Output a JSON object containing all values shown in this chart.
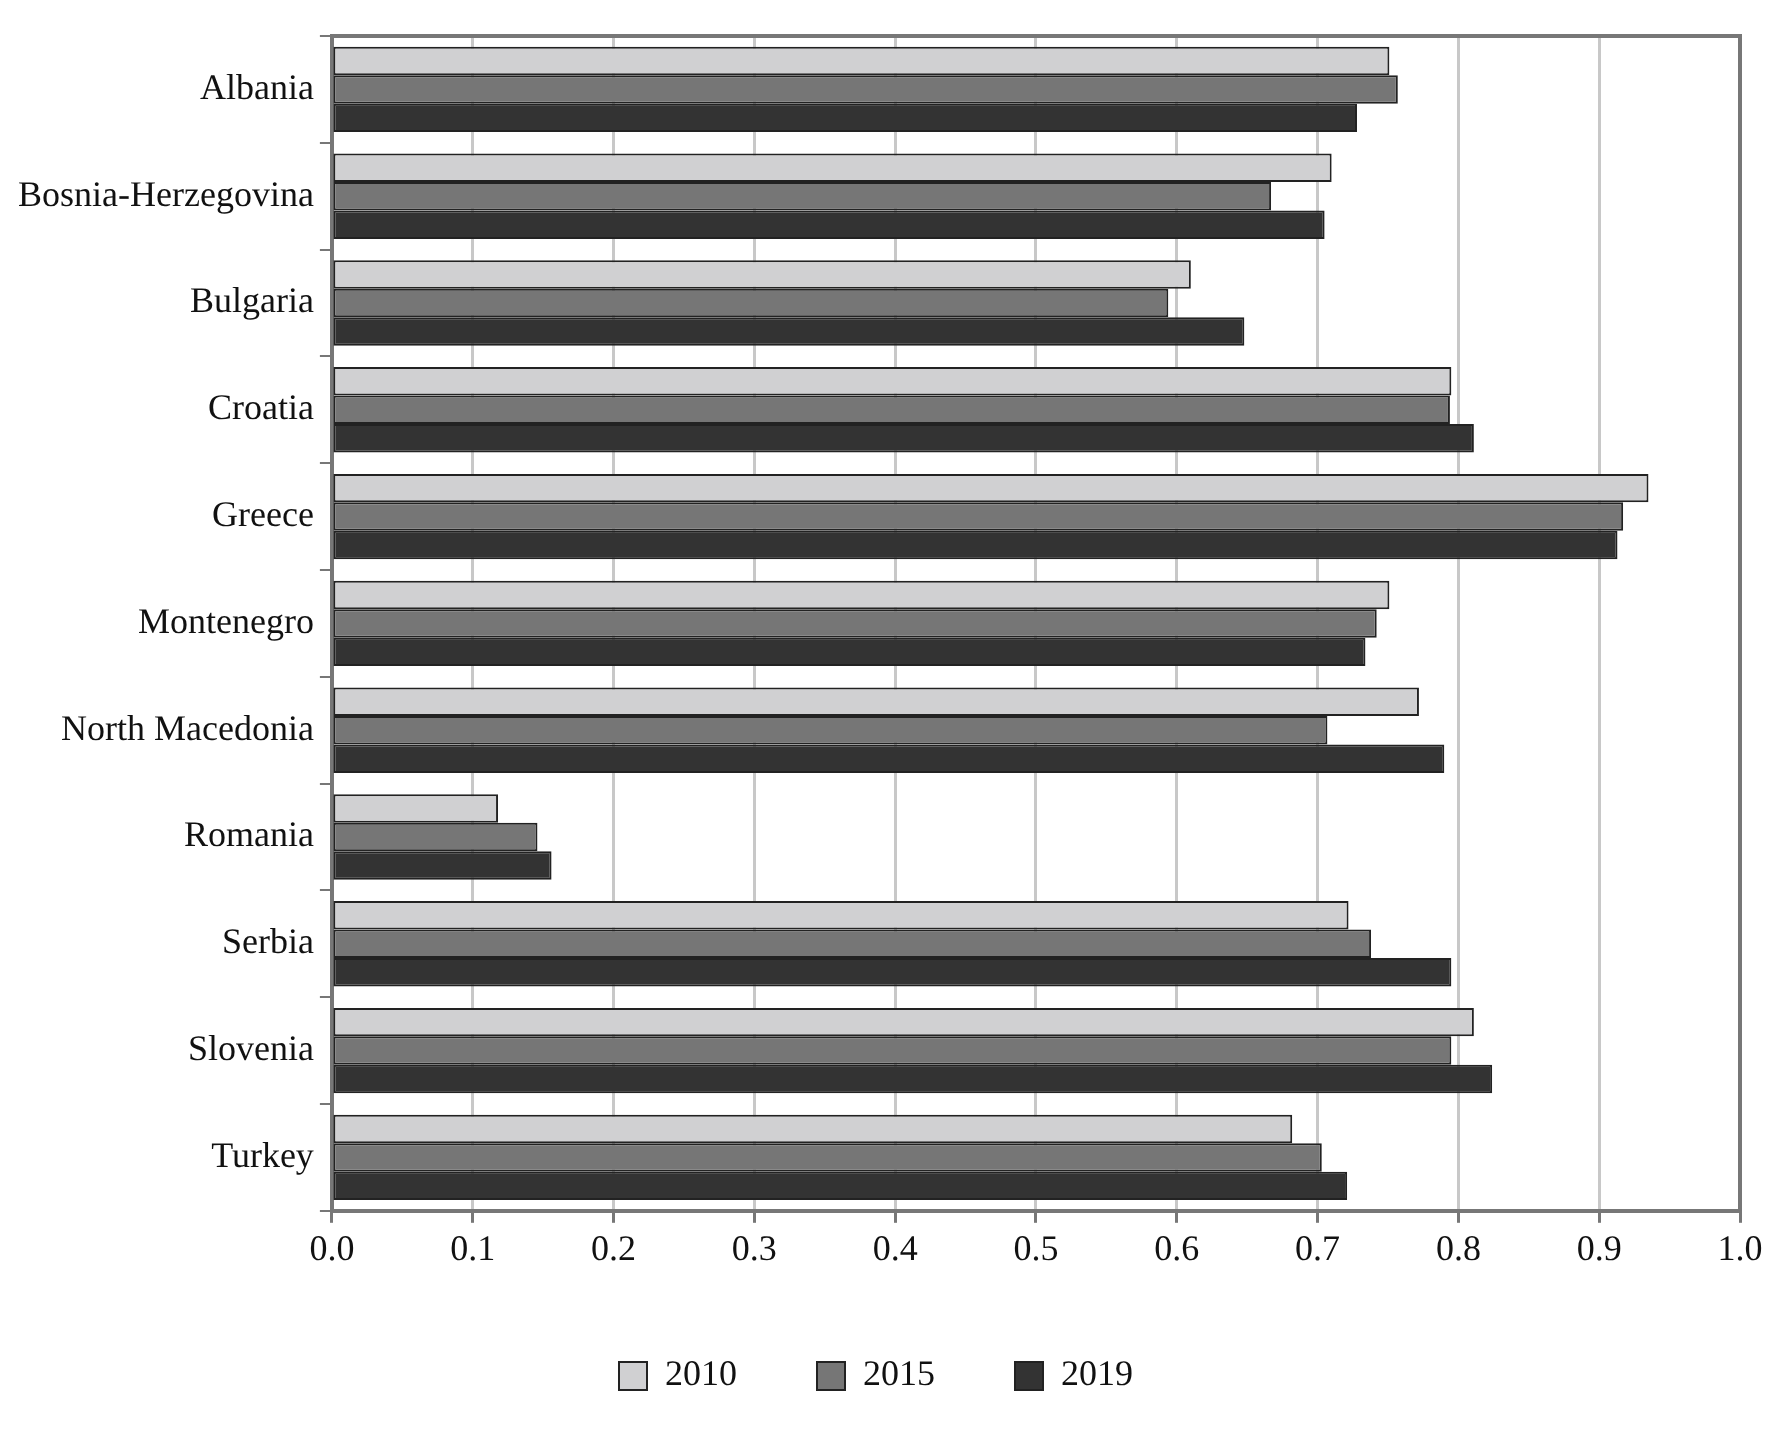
{
  "chart_data": {
    "type": "bar",
    "orientation": "horizontal",
    "categories": [
      "Albania",
      "Bosnia-Herzegovina",
      "Bulgaria",
      "Croatia",
      "Greece",
      "Montenegro",
      "North Macedonia",
      "Romania",
      "Serbia",
      "Slovenia",
      "Turkey"
    ],
    "series": [
      {
        "name": "2010",
        "color": "#d0d0d2",
        "values": [
          0.751,
          0.71,
          0.61,
          0.795,
          0.935,
          0.751,
          0.772,
          0.118,
          0.722,
          0.811,
          0.682
        ]
      },
      {
        "name": "2015",
        "color": "#767676",
        "values": [
          0.757,
          0.667,
          0.594,
          0.794,
          0.917,
          0.742,
          0.707,
          0.146,
          0.738,
          0.795,
          0.703
        ]
      },
      {
        "name": "2019",
        "color": "#333333",
        "values": [
          0.728,
          0.705,
          0.648,
          0.811,
          0.913,
          0.734,
          0.79,
          0.156,
          0.795,
          0.824,
          0.721
        ]
      }
    ],
    "xlim": [
      0,
      1
    ],
    "xticks": [
      {
        "value": 0,
        "label": "0.0"
      },
      {
        "value": 0.1,
        "label": "0.1"
      },
      {
        "value": 0.2,
        "label": "0.2"
      },
      {
        "value": 0.3,
        "label": "0.3"
      },
      {
        "value": 0.4,
        "label": "0.4"
      },
      {
        "value": 0.5,
        "label": "0.5"
      },
      {
        "value": 0.6,
        "label": "0.6"
      },
      {
        "value": 0.7,
        "label": "0.7"
      },
      {
        "value": 0.8,
        "label": "0.8"
      },
      {
        "value": 0.9,
        "label": "0.9"
      },
      {
        "value": 1,
        "label": "1.0"
      }
    ],
    "grid": "x",
    "legend": "bottom"
  }
}
